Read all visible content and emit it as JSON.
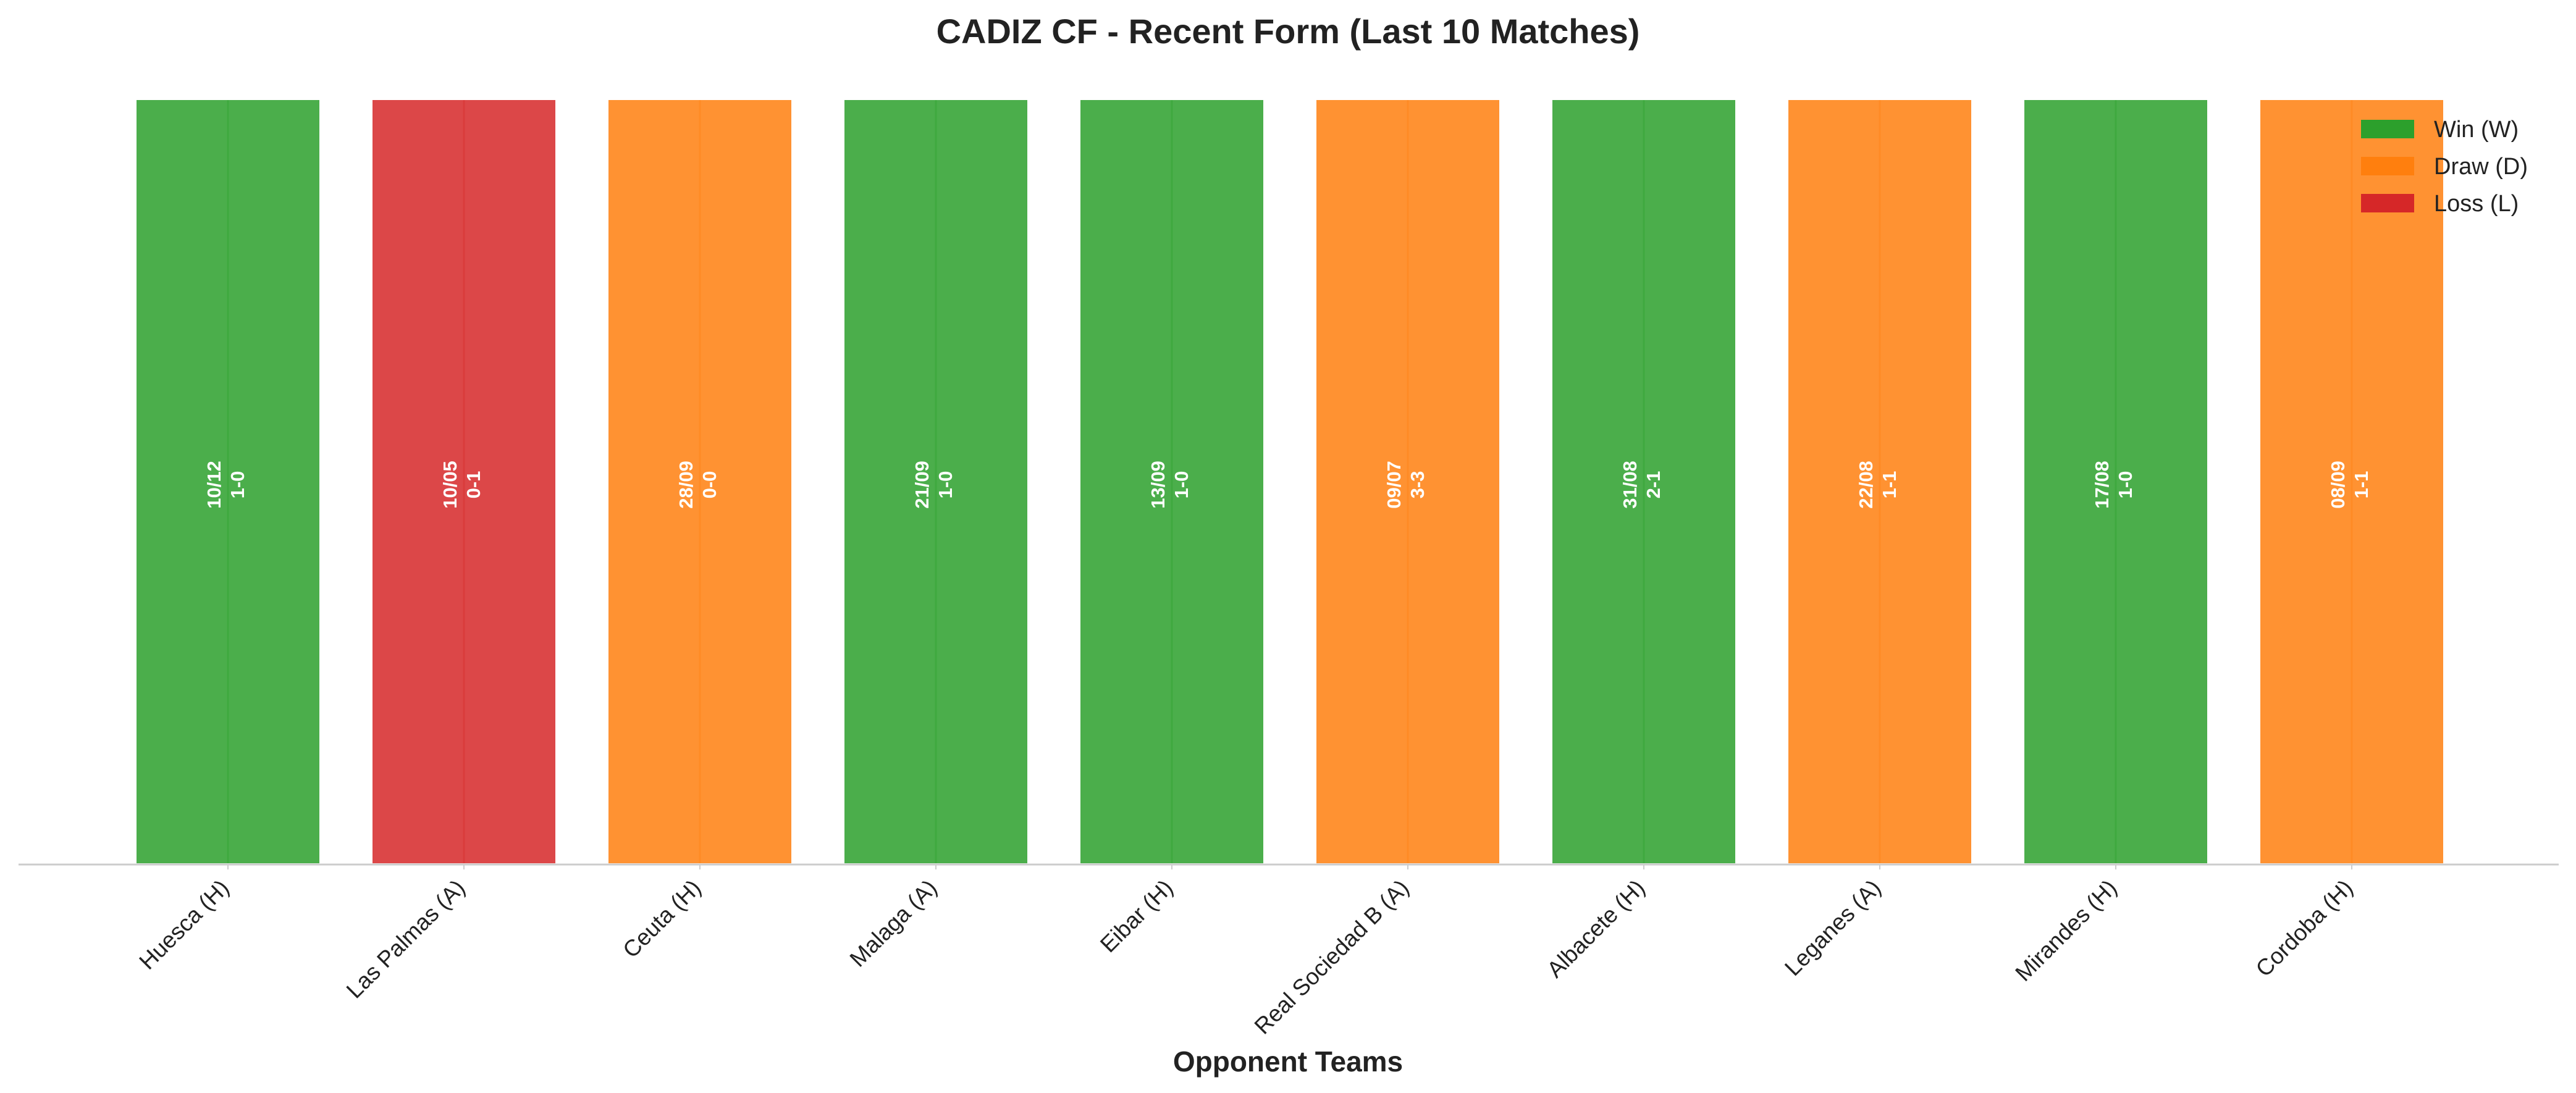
{
  "chart_data": {
    "type": "bar",
    "title": "CADIZ CF - Recent Form (Last 10 Matches)",
    "xlabel": "Opponent Teams",
    "ylabel": "",
    "ylim": [
      0,
      1
    ],
    "grid": false,
    "legend_position": "top-right",
    "categories": [
      "Huesca (H)",
      "Las Palmas (A)",
      "Ceuta (H)",
      "Malaga (A)",
      "Eibar (H)",
      "Real Sociedad B (A)",
      "Albacete (H)",
      "Leganes (A)",
      "Mirandes (H)",
      "Cordoba (H)"
    ],
    "values": [
      1,
      1,
      1,
      1,
      1,
      1,
      1,
      1,
      1,
      1
    ],
    "results": [
      "W",
      "L",
      "D",
      "W",
      "W",
      "D",
      "W",
      "D",
      "W",
      "D"
    ],
    "dates": [
      "10/12",
      "10/05",
      "28/09",
      "21/09",
      "13/09",
      "09/07",
      "31/08",
      "22/08",
      "17/08",
      "08/09"
    ],
    "scores": [
      "1-0",
      "0-1",
      "0-0",
      "1-0",
      "1-0",
      "3-3",
      "2-1",
      "1-1",
      "1-0",
      "1-1"
    ],
    "legend": [
      {
        "key": "W",
        "label": "Win (W)",
        "color": "#2ca02c"
      },
      {
        "key": "D",
        "label": "Draw (D)",
        "color": "#ff7f0e"
      },
      {
        "key": "L",
        "label": "Loss (L)",
        "color": "#d62728"
      }
    ]
  }
}
